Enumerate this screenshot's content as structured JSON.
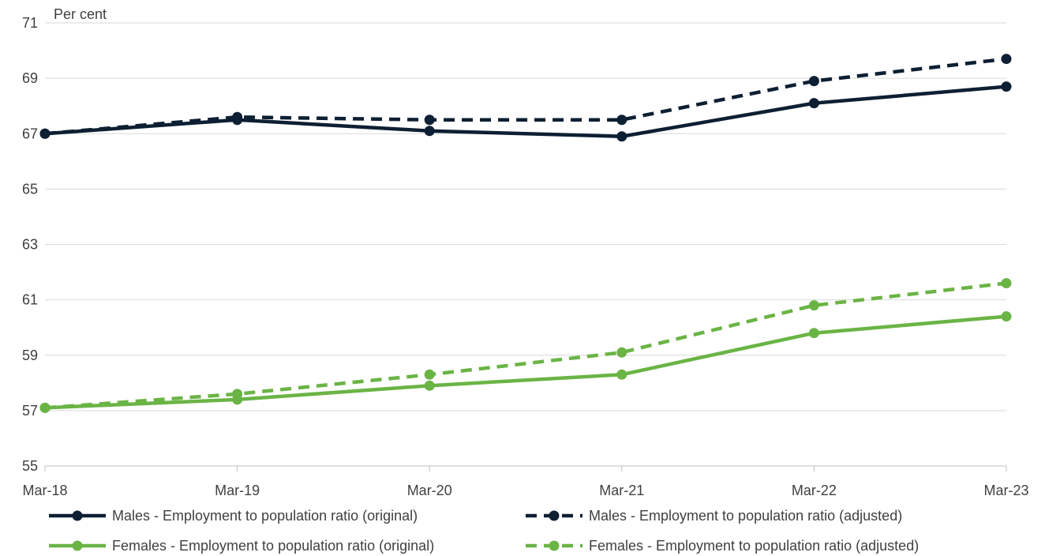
{
  "chart_data": {
    "type": "line",
    "title": "",
    "ylabel": "Per cent",
    "xlabel": "",
    "categories": [
      "Mar-18",
      "Mar-19",
      "Mar-20",
      "Mar-21",
      "Mar-22",
      "Mar-23"
    ],
    "ylim": [
      55,
      71
    ],
    "yticks": [
      "55",
      "57",
      "59",
      "61",
      "63",
      "65",
      "67",
      "69",
      "71"
    ],
    "grid": true,
    "legend_position": "bottom",
    "series": [
      {
        "name": "Males - Employment to population ratio (original)",
        "color": "#0d1f33",
        "dashed": false,
        "values": [
          67.0,
          67.5,
          67.1,
          66.9,
          68.1,
          68.7
        ]
      },
      {
        "name": "Males - Employment to population ratio (adjusted)",
        "color": "#0d1f33",
        "dashed": true,
        "values": [
          67.0,
          67.6,
          67.5,
          67.5,
          68.9,
          69.7
        ]
      },
      {
        "name": "Females  - Employment to population ratio (original)",
        "color": "#6ab445",
        "dashed": false,
        "values": [
          57.1,
          57.4,
          57.9,
          58.3,
          59.8,
          60.4
        ]
      },
      {
        "name": "Females  - Employment to population ratio (adjusted)",
        "color": "#6ab445",
        "dashed": true,
        "values": [
          57.1,
          57.6,
          58.3,
          59.1,
          60.8,
          61.6
        ]
      }
    ]
  }
}
